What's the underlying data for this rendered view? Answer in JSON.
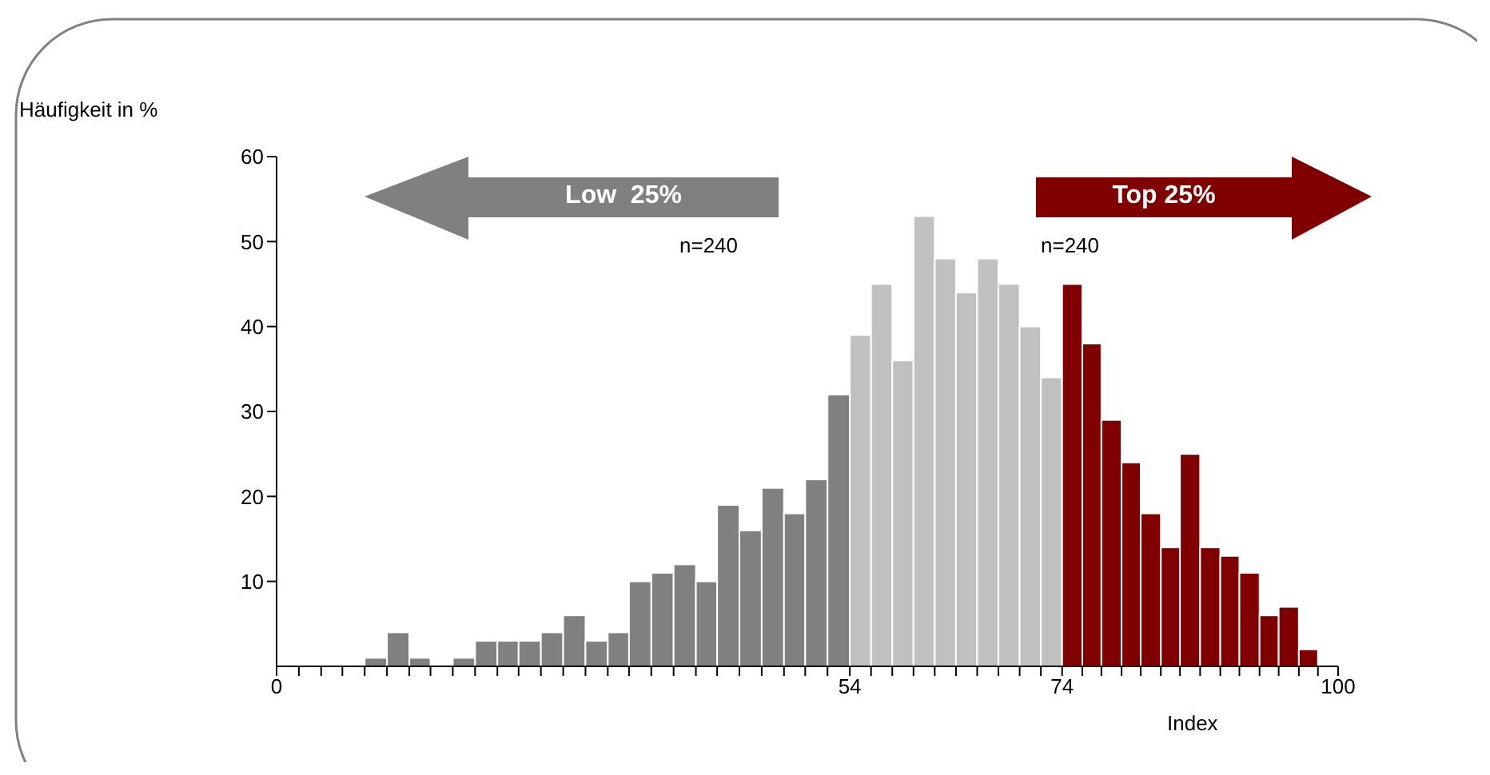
{
  "chart_data": {
    "type": "histogram",
    "ylabel": "Häufigkeit in %",
    "xlabel": "Index",
    "bins": [
      8.3,
      10.4,
      12.5,
      14.5,
      16.6,
      18.7,
      20.8,
      22.8,
      24.9,
      27,
      29.1,
      31.2,
      33.2,
      35.3,
      37.4,
      39.5,
      41.5,
      43.6,
      45.7,
      47.8,
      49.8,
      51.9,
      54,
      56,
      58,
      60,
      62,
      64,
      66,
      68,
      70,
      72,
      74,
      75.9,
      77.7,
      79.6,
      81.4,
      83.3,
      85.1,
      87,
      88.9,
      90.7,
      92.6,
      94.4,
      96.3,
      98.1
    ],
    "values": [
      1,
      4,
      1,
      0,
      1,
      3,
      3,
      3,
      4,
      6,
      3,
      4,
      10,
      11,
      12,
      10,
      19,
      16,
      21,
      18,
      22,
      32,
      39,
      45,
      36,
      53,
      48,
      44,
      48,
      45,
      40,
      34,
      45,
      38,
      29,
      24,
      18,
      14,
      25,
      14,
      13,
      11,
      6,
      7,
      2
    ],
    "colors": [
      "#808080",
      "#808080",
      "#808080",
      "#808080",
      "#808080",
      "#808080",
      "#808080",
      "#808080",
      "#808080",
      "#808080",
      "#808080",
      "#808080",
      "#808080",
      "#808080",
      "#808080",
      "#808080",
      "#808080",
      "#808080",
      "#808080",
      "#808080",
      "#808080",
      "#808080",
      "#c0c0c0",
      "#c0c0c0",
      "#c0c0c0",
      "#c0c0c0",
      "#c0c0c0",
      "#c0c0c0",
      "#c0c0c0",
      "#c0c0c0",
      "#c0c0c0",
      "#c0c0c0",
      "#800000",
      "#800000",
      "#800000",
      "#800000",
      "#800000",
      "#800000",
      "#800000",
      "#800000",
      "#800000",
      "#800000",
      "#800000",
      "#800000",
      "#800000"
    ],
    "xlim": [
      0,
      100
    ],
    "xticks": [
      0,
      {
        "value": 2.1,
        "label": null
      },
      {
        "value": 4.2,
        "label": null
      },
      {
        "value": 6.2,
        "label": null
      },
      {
        "value": 8.3,
        "label": null
      },
      {
        "value": 10.4,
        "label": null
      },
      {
        "value": 12.5,
        "label": null
      },
      {
        "value": 14.5,
        "label": null
      },
      {
        "value": 16.6,
        "label": null
      },
      {
        "value": 18.7,
        "label": null
      },
      {
        "value": 20.8,
        "label": null
      },
      {
        "value": 22.8,
        "label": null
      },
      {
        "value": 24.9,
        "label": null
      },
      {
        "value": 27,
        "label": null
      },
      {
        "value": 29.1,
        "label": null
      },
      {
        "value": 31.2,
        "label": null
      },
      {
        "value": 33.2,
        "label": null
      },
      {
        "value": 35.3,
        "label": null
      },
      {
        "value": 37.4,
        "label": null
      },
      {
        "value": 39.5,
        "label": null
      },
      {
        "value": 41.5,
        "label": null
      },
      {
        "value": 43.6,
        "label": null
      },
      {
        "value": 45.7,
        "label": null
      },
      {
        "value": 47.8,
        "label": null
      },
      {
        "value": 49.8,
        "label": null
      },
      {
        "value": 51.9,
        "label": null
      },
      54,
      {
        "value": 56,
        "label": null
      },
      {
        "value": 58,
        "label": null
      },
      {
        "value": 60,
        "label": null
      },
      {
        "value": 62,
        "label": null
      },
      {
        "value": 64,
        "label": null
      },
      {
        "value": 66,
        "label": null
      },
      {
        "value": 68,
        "label": null
      },
      {
        "value": 70,
        "label": null
      },
      {
        "value": 72,
        "label": null
      },
      74,
      {
        "value": 75.9,
        "label": null
      },
      {
        "value": 77.7,
        "label": null
      },
      {
        "value": 79.6,
        "label": null
      },
      {
        "value": 81.4,
        "label": null
      },
      {
        "value": 83.3,
        "label": null
      },
      {
        "value": 85.1,
        "label": null
      },
      {
        "value": 87,
        "label": null
      },
      {
        "value": 88.9,
        "label": null
      },
      {
        "value": 90.7,
        "label": null
      },
      {
        "value": 92.6,
        "label": null
      },
      {
        "value": 94.4,
        "label": null
      },
      {
        "value": 96.3,
        "label": null
      },
      {
        "value": 98.1,
        "label": null
      },
      100
    ],
    "ylim": [
      0,
      60
    ],
    "yticks": [
      10,
      20,
      30,
      40,
      50,
      60
    ],
    "annotations": [
      "Low  25%",
      "n=240",
      "Top 25%",
      "n=240"
    ]
  }
}
